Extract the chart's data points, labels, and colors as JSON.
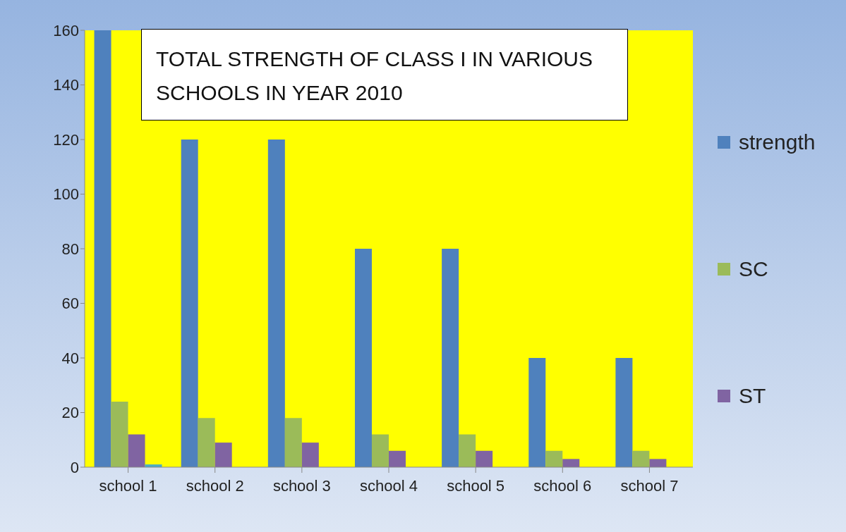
{
  "chart_data": {
    "type": "bar",
    "title": "TOTAL STRENGTH OF CLASS I IN VARIOUS SCHOOLS IN YEAR 2010",
    "categories": [
      "school 1",
      "school 2",
      "school 3",
      "school 4",
      "school 5",
      "school 6",
      "school 7"
    ],
    "series": [
      {
        "name": "strength",
        "color": "#4f81bd",
        "values": [
          160,
          120,
          120,
          80,
          80,
          40,
          40
        ]
      },
      {
        "name": "SC",
        "color": "#9bbb59",
        "values": [
          24,
          18,
          18,
          12,
          12,
          6,
          6
        ]
      },
      {
        "name": "ST",
        "color": "#8064a2",
        "values": [
          12,
          9,
          9,
          6,
          6,
          3,
          3
        ]
      },
      {
        "color": "#4bacc6",
        "values": [
          1,
          null,
          null,
          null,
          null,
          null,
          null
        ]
      }
    ],
    "ylim": [
      0,
      160
    ],
    "yticks": [
      0,
      20,
      40,
      60,
      80,
      100,
      120,
      140,
      160
    ],
    "grid": false,
    "legend": "right"
  }
}
